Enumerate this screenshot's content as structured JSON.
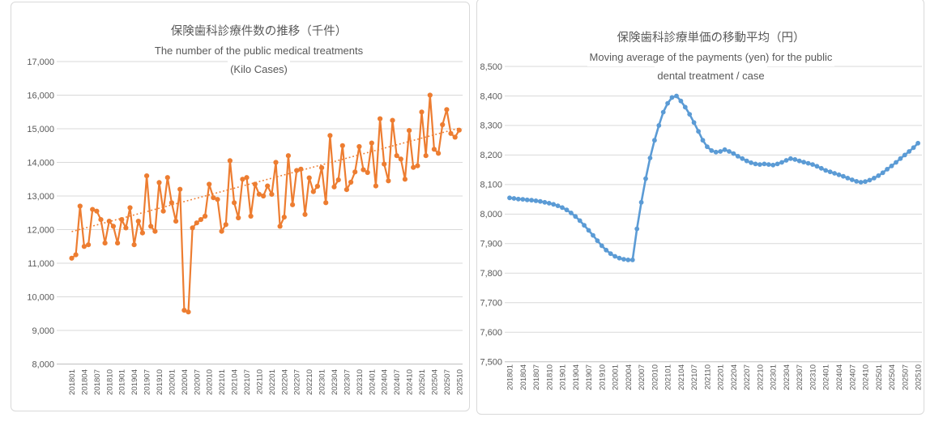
{
  "chart_data": [
    {
      "type": "line",
      "title_jp": "保険歯科診療件数の推移（千件）",
      "subtitle_en_line1": "The number of the public medical treatments",
      "subtitle_en_line2": "(Kilo Cases)",
      "series_color": "#ED7D31",
      "grid": true,
      "legend_position": "none",
      "ylim": [
        8000,
        17000
      ],
      "ytick_step": 1000,
      "ytick_labels": [
        "17,000",
        "16,000",
        "15,000",
        "14,000",
        "13,000",
        "12,000",
        "11,000",
        "10,000",
        "9,000",
        "8,000"
      ],
      "xtick_labels": [
        "201801",
        "201804",
        "201807",
        "201810",
        "201901",
        "201904",
        "201907",
        "201910",
        "202001",
        "202004",
        "202007",
        "202010",
        "202101",
        "202104",
        "202107",
        "202110",
        "202201",
        "202204",
        "202207",
        "202210",
        "202301",
        "202304",
        "202307",
        "202310",
        "202401",
        "202404",
        "202407",
        "202410",
        "202501",
        "202504",
        "202507",
        "202510"
      ],
      "x_months": [
        "201801",
        "201802",
        "201803",
        "201804",
        "201805",
        "201806",
        "201807",
        "201808",
        "201809",
        "201810",
        "201811",
        "201812",
        "201901",
        "201902",
        "201903",
        "201904",
        "201905",
        "201906",
        "201907",
        "201908",
        "201909",
        "201910",
        "201911",
        "201912",
        "202001",
        "202002",
        "202003",
        "202004",
        "202005",
        "202006",
        "202007",
        "202008",
        "202009",
        "202010",
        "202011",
        "202012",
        "202101",
        "202102",
        "202103",
        "202104",
        "202105",
        "202106",
        "202107",
        "202108",
        "202109",
        "202110",
        "202111",
        "202112",
        "202201",
        "202202",
        "202203",
        "202204",
        "202205",
        "202206",
        "202207",
        "202208",
        "202209",
        "202210",
        "202211",
        "202212",
        "202301",
        "202302",
        "202303",
        "202304",
        "202305",
        "202306",
        "202307",
        "202308",
        "202309",
        "202310",
        "202311",
        "202312",
        "202401",
        "202402",
        "202403",
        "202404",
        "202405",
        "202406",
        "202407",
        "202408",
        "202409",
        "202410",
        "202411",
        "202412",
        "202501",
        "202502",
        "202503",
        "202504",
        "202505",
        "202506",
        "202507",
        "202508",
        "202509",
        "202510"
      ],
      "values": [
        11150,
        11250,
        12700,
        11500,
        11550,
        12600,
        12550,
        12300,
        11600,
        12250,
        12100,
        11600,
        12300,
        12050,
        12650,
        11550,
        12250,
        11900,
        13600,
        12100,
        11950,
        13400,
        12550,
        13550,
        12800,
        12250,
        13200,
        9600,
        9550,
        12050,
        12200,
        12300,
        12400,
        13350,
        12950,
        12900,
        11950,
        12150,
        14050,
        12800,
        12350,
        13500,
        13550,
        12400,
        13350,
        13050,
        13000,
        13300,
        13050,
        14000,
        12100,
        12370,
        14200,
        12740,
        13760,
        13800,
        12450,
        13540,
        13130,
        13290,
        13840,
        12800,
        14800,
        13270,
        13480,
        14500,
        13190,
        13410,
        13715,
        14470,
        13780,
        13700,
        14575,
        13300,
        15300,
        13950,
        13450,
        15250,
        14200,
        14100,
        13500,
        14950,
        13850,
        13900,
        15500,
        14200,
        16000,
        14390,
        14270,
        15120,
        15570,
        14860,
        14750,
        14960
      ],
      "trendline": {
        "style": "dotted-linear",
        "start_value": 11940,
        "end_value": 15020,
        "color": "#ED7D31"
      }
    },
    {
      "type": "line",
      "title_jp": "保険歯科診療単価の移動平均（円）",
      "subtitle_en_line1": "Moving average of the payments (yen) for the public",
      "subtitle_en_line2": "dental treatment / case",
      "series_color": "#5B9BD5",
      "grid": true,
      "legend_position": "none",
      "ylim": [
        7500,
        8500
      ],
      "ytick_step": 100,
      "ytick_labels": [
        "8,500",
        "8,400",
        "8,300",
        "8,200",
        "8,100",
        "8,000",
        "7,900",
        "7,800",
        "7,700",
        "7,600",
        "7,500"
      ],
      "xtick_labels": [
        "201801",
        "201804",
        "201807",
        "201810",
        "201901",
        "201904",
        "201907",
        "201910",
        "202001",
        "202004",
        "202007",
        "202010",
        "202101",
        "202104",
        "202107",
        "202110",
        "202201",
        "202204",
        "202207",
        "202210",
        "202301",
        "202304",
        "202307",
        "202310",
        "202401",
        "202404",
        "202407",
        "202410",
        "202501",
        "202504",
        "202507",
        "202510"
      ],
      "x_months": [
        "201801",
        "201802",
        "201803",
        "201804",
        "201805",
        "201806",
        "201807",
        "201808",
        "201809",
        "201810",
        "201811",
        "201812",
        "201901",
        "201902",
        "201903",
        "201904",
        "201905",
        "201906",
        "201907",
        "201908",
        "201909",
        "201910",
        "201911",
        "201912",
        "202001",
        "202002",
        "202003",
        "202004",
        "202005",
        "202006",
        "202007",
        "202008",
        "202009",
        "202010",
        "202011",
        "202012",
        "202101",
        "202102",
        "202103",
        "202104",
        "202105",
        "202106",
        "202107",
        "202108",
        "202109",
        "202110",
        "202111",
        "202112",
        "202201",
        "202202",
        "202203",
        "202204",
        "202205",
        "202206",
        "202207",
        "202208",
        "202209",
        "202210",
        "202211",
        "202212",
        "202301",
        "202302",
        "202303",
        "202304",
        "202305",
        "202306",
        "202307",
        "202308",
        "202309",
        "202310",
        "202311",
        "202312",
        "202401",
        "202402",
        "202403",
        "202404",
        "202405",
        "202406",
        "202407",
        "202408",
        "202409",
        "202410",
        "202411",
        "202412",
        "202501",
        "202502",
        "202503",
        "202504",
        "202505",
        "202506",
        "202507",
        "202508",
        "202509",
        "202510"
      ],
      "values": [
        8055,
        8053,
        8051,
        8050,
        8048,
        8047,
        8045,
        8043,
        8040,
        8037,
        8033,
        8028,
        8022,
        8014,
        8004,
        7992,
        7978,
        7962,
        7945,
        7928,
        7910,
        7893,
        7878,
        7866,
        7857,
        7851,
        7847,
        7845,
        7845,
        7950,
        8040,
        8120,
        8190,
        8250,
        8300,
        8345,
        8375,
        8395,
        8400,
        8383,
        8362,
        8338,
        8310,
        8280,
        8250,
        8228,
        8215,
        8210,
        8212,
        8218,
        8212,
        8205,
        8196,
        8188,
        8180,
        8174,
        8170,
        8168,
        8170,
        8168,
        8166,
        8170,
        8175,
        8182,
        8188,
        8185,
        8180,
        8176,
        8172,
        8168,
        8162,
        8155,
        8148,
        8143,
        8138,
        8133,
        8128,
        8122,
        8116,
        8111,
        8108,
        8110,
        8115,
        8122,
        8130,
        8140,
        8152,
        8163,
        8175,
        8188,
        8200,
        8212,
        8225,
        8240
      ]
    }
  ],
  "colors": {
    "grid": "#d9d9d9",
    "axis_line": "#bfbfbf",
    "axis_text": "#595959",
    "title_text": "#595959",
    "panel_border": "#d9d9d9",
    "background": "#ffffff"
  }
}
